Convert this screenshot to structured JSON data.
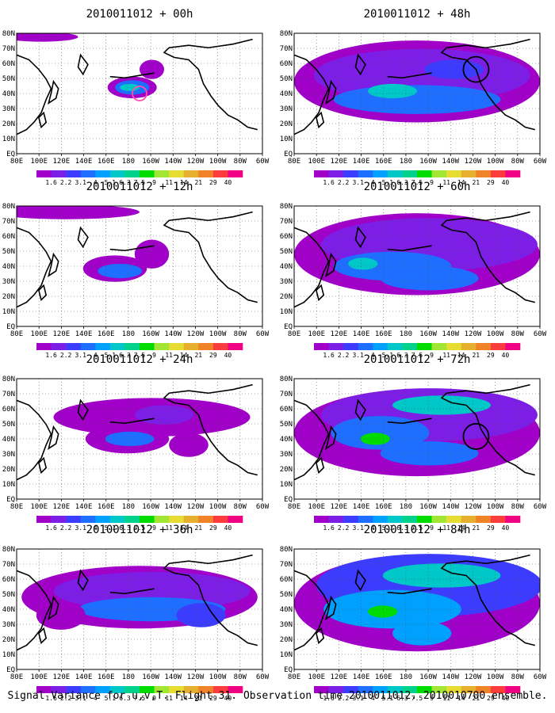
{
  "panels": [
    {
      "title": "2010011012 + 00h",
      "target_circle": true,
      "circle_color": "#ff4fa6"
    },
    {
      "title": "2010011012 + 12h",
      "target_circle": false
    },
    {
      "title": "2010011012 + 24h",
      "target_circle": false
    },
    {
      "title": "2010011012 + 36h",
      "target_circle": false
    },
    {
      "title": "2010011012 + 48h",
      "target_circle": true,
      "circle_color": "#000000"
    },
    {
      "title": "2010011012 + 60h",
      "target_circle": false
    },
    {
      "title": "2010011012 + 72h",
      "target_circle": true,
      "circle_color": "#000000"
    },
    {
      "title": "2010011012 + 84h",
      "target_circle": false
    }
  ],
  "axes": {
    "lon_labels": [
      "80E",
      "100E",
      "120E",
      "140E",
      "160E",
      "180",
      "160W",
      "140W",
      "120W",
      "100W",
      "80W",
      "60W"
    ],
    "lat_labels": [
      "EQ",
      "10N",
      "20N",
      "30N",
      "40N",
      "50N",
      "60N",
      "70N",
      "80N"
    ]
  },
  "colorbar": {
    "labels": [
      "1.6",
      "2.2",
      "3.1",
      "4",
      "5.1",
      "6.3",
      "7.5",
      "9",
      "11",
      "14",
      "21",
      "29",
      "40"
    ],
    "colors": [
      "#a000c8",
      "#7d1ee6",
      "#3c3cff",
      "#1e6eff",
      "#00a0ff",
      "#00c8c8",
      "#00d28c",
      "#00dc00",
      "#a0e632",
      "#e6dc32",
      "#e6af2d",
      "#f08228",
      "#fa3c3c",
      "#f00082"
    ]
  },
  "caption": "Signal Variance for u,v,T. Flight 31. Observation time 2010011012. 2010010700 ensemble."
}
